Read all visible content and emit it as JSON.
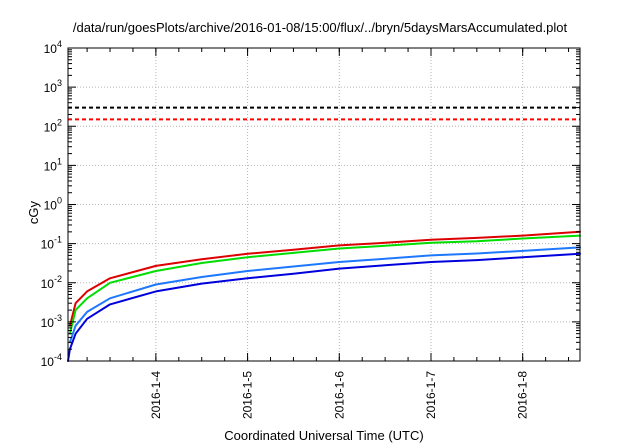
{
  "chart_data": {
    "type": "line",
    "title": "/data/run/goesPlots/archive/2016-01-08/15:00/flux/../bryn/5daysMarsAccumulated.plot",
    "xlabel": "Coordinated Universal Time (UTC)",
    "ylabel": "cGy",
    "y_scale": "log",
    "ylim": [
      0.0001,
      10000
    ],
    "xlim": [
      "2016-01-03 01:00",
      "2016-01-08 15:00"
    ],
    "x_ticks": [
      "2016-1-4",
      "2016-1-5",
      "2016-1-6",
      "2016-1-7",
      "2016-1-8"
    ],
    "y_ticks": [
      {
        "value": 0.0001,
        "base": "10",
        "exp": "-4"
      },
      {
        "value": 0.001,
        "base": "10",
        "exp": "-3"
      },
      {
        "value": 0.01,
        "base": "10",
        "exp": "-2"
      },
      {
        "value": 0.1,
        "base": "10",
        "exp": "-1"
      },
      {
        "value": 1,
        "base": "10",
        "exp": "0"
      },
      {
        "value": 10,
        "base": "10",
        "exp": "1"
      },
      {
        "value": 100,
        "base": "10",
        "exp": "2"
      },
      {
        "value": 1000,
        "base": "10",
        "exp": "3"
      },
      {
        "value": 10000,
        "base": "10",
        "exp": "4"
      }
    ],
    "grid": true,
    "series": [
      {
        "color": "#dd0000",
        "style": "solid",
        "x": [
          "2016-01-03 01:30",
          "2016-01-03 03:00",
          "2016-01-03 06:00",
          "2016-01-03 12:00",
          "2016-01-04 00:00",
          "2016-01-04 12:00",
          "2016-01-05 00:00",
          "2016-01-05 12:00",
          "2016-01-06 00:00",
          "2016-01-06 12:00",
          "2016-01-07 00:00",
          "2016-01-07 12:00",
          "2016-01-08 00:00",
          "2016-01-08 15:00"
        ],
        "y": [
          0.0008,
          0.003,
          0.006,
          0.013,
          0.027,
          0.04,
          0.055,
          0.07,
          0.09,
          0.105,
          0.125,
          0.14,
          0.16,
          0.2
        ]
      },
      {
        "color": "#00dd00",
        "style": "solid",
        "x": [
          "2016-01-03 01:30",
          "2016-01-03 03:00",
          "2016-01-03 06:00",
          "2016-01-03 12:00",
          "2016-01-04 00:00",
          "2016-01-04 12:00",
          "2016-01-05 00:00",
          "2016-01-05 12:00",
          "2016-01-06 00:00",
          "2016-01-06 12:00",
          "2016-01-07 00:00",
          "2016-01-07 12:00",
          "2016-01-08 00:00",
          "2016-01-08 15:00"
        ],
        "y": [
          0.0005,
          0.002,
          0.004,
          0.01,
          0.02,
          0.032,
          0.045,
          0.058,
          0.075,
          0.088,
          0.105,
          0.115,
          0.135,
          0.16
        ]
      },
      {
        "color": "#1e78ff",
        "style": "solid",
        "x": [
          "2016-01-03 01:30",
          "2016-01-03 03:00",
          "2016-01-03 06:00",
          "2016-01-03 12:00",
          "2016-01-04 00:00",
          "2016-01-04 12:00",
          "2016-01-05 00:00",
          "2016-01-05 12:00",
          "2016-01-06 00:00",
          "2016-01-06 12:00",
          "2016-01-07 00:00",
          "2016-01-07 12:00",
          "2016-01-08 00:00",
          "2016-01-08 15:00"
        ],
        "y": [
          0.0003,
          0.0008,
          0.0018,
          0.004,
          0.009,
          0.014,
          0.02,
          0.026,
          0.034,
          0.041,
          0.05,
          0.056,
          0.065,
          0.08
        ]
      },
      {
        "color": "#0000dd",
        "style": "solid",
        "x": [
          "2016-01-03 01:00",
          "2016-01-03 01:30",
          "2016-01-03 03:00",
          "2016-01-03 06:00",
          "2016-01-03 12:00",
          "2016-01-04 00:00",
          "2016-01-04 12:00",
          "2016-01-05 00:00",
          "2016-01-05 12:00",
          "2016-01-06 00:00",
          "2016-01-06 12:00",
          "2016-01-07 00:00",
          "2016-01-07 12:00",
          "2016-01-08 00:00",
          "2016-01-08 15:00"
        ],
        "y": [
          0.0001,
          0.0002,
          0.0005,
          0.0012,
          0.0028,
          0.006,
          0.0095,
          0.013,
          0.017,
          0.023,
          0.028,
          0.034,
          0.038,
          0.045,
          0.055
        ]
      },
      {
        "color": "#000000",
        "style": "dashed",
        "x": [
          "2016-01-03 01:00",
          "2016-01-08 15:00"
        ],
        "y": [
          300,
          300
        ]
      },
      {
        "color": "#ff0000",
        "style": "dashed",
        "x": [
          "2016-01-03 01:00",
          "2016-01-08 15:00"
        ],
        "y": [
          150,
          150
        ]
      }
    ]
  }
}
